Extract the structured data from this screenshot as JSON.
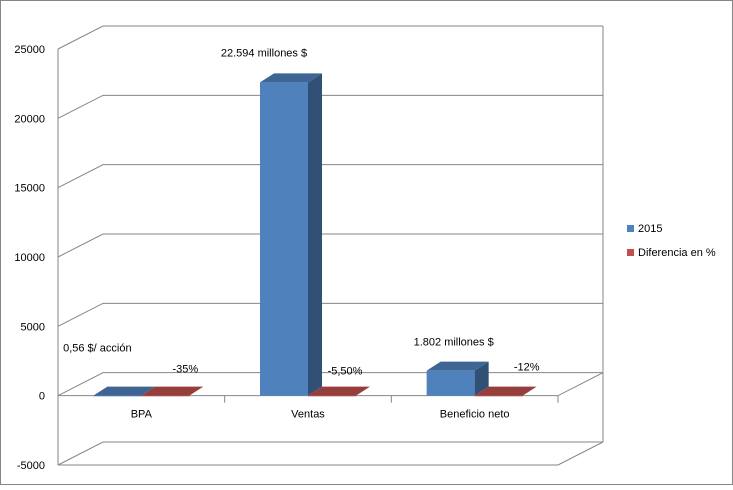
{
  "chart_data": {
    "type": "bar",
    "title": "",
    "xlabel": "",
    "ylabel": "",
    "ylim": [
      -5000,
      25000
    ],
    "yticks": [
      -5000,
      0,
      5000,
      10000,
      15000,
      20000,
      25000
    ],
    "grid": true,
    "three_d": true,
    "legend_position": "right",
    "categories": [
      "BPA",
      "Ventas",
      "Beneficio neto"
    ],
    "series": [
      {
        "name": "2015",
        "color": "#4F81BD",
        "values": [
          0.56,
          22594,
          1802
        ],
        "labels": [
          "0,56 $/ acción",
          "22.594 millones $",
          "1.802 millones $"
        ]
      },
      {
        "name": "Diferencia en %",
        "color": "#C0504D",
        "values": [
          -35,
          -5.5,
          -12
        ],
        "labels": [
          "-35%",
          "-5,50%",
          "-12%"
        ]
      }
    ]
  }
}
